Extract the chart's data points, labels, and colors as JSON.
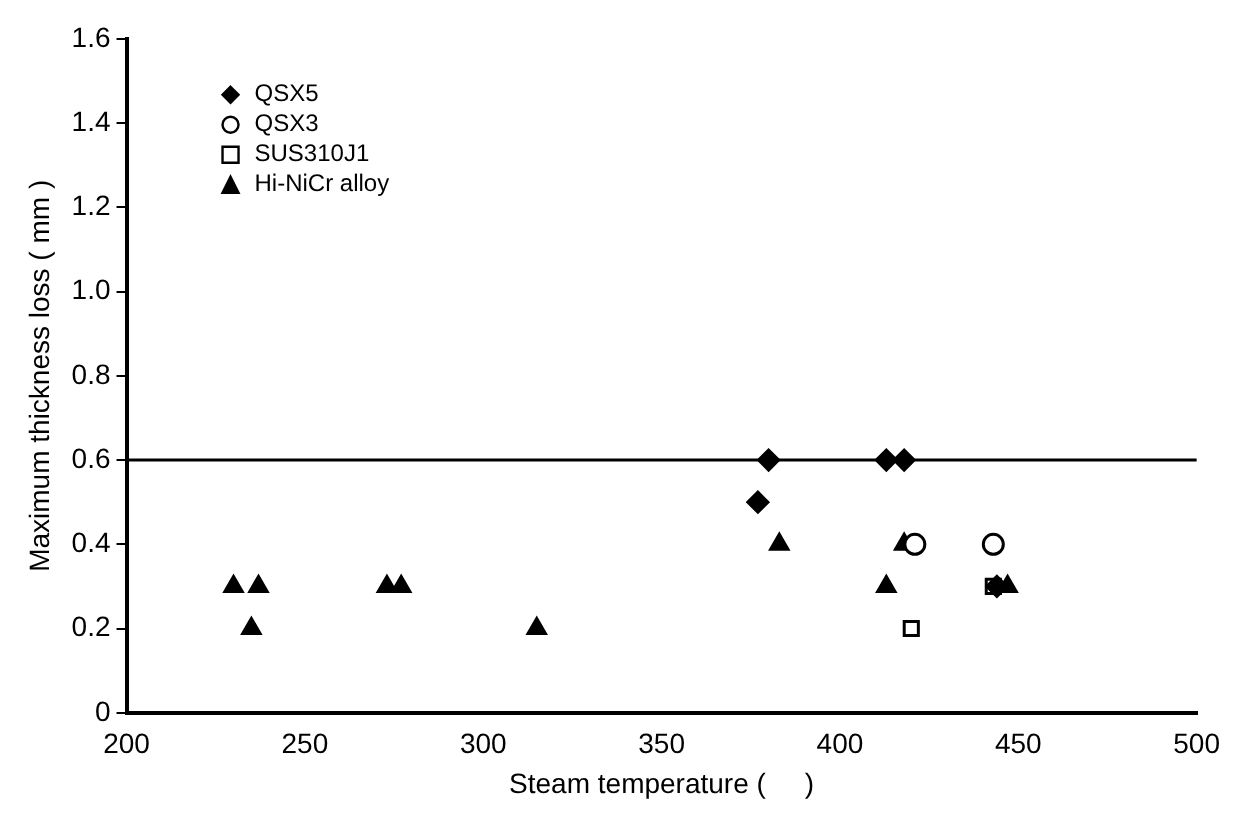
{
  "chart_data": {
    "type": "scatter",
    "xlabel": "Steam temperature (     )",
    "ylabel": "Maximum thickness loss ( mm )",
    "xlim": [
      200,
      500
    ],
    "xticks": [
      200,
      250,
      300,
      350,
      400,
      450,
      500
    ],
    "ylim": [
      0,
      1.6
    ],
    "yticks": [
      0,
      {
        "value": 0.2,
        "label": "0.2"
      },
      {
        "value": 0.4,
        "label": "0.4"
      },
      {
        "value": 0.6,
        "label": "0.6"
      },
      {
        "value": 0.8,
        "label": "0.8"
      },
      {
        "value": 1.0,
        "label": "1.0"
      },
      {
        "value": 1.2,
        "label": "1.2"
      },
      {
        "value": 1.4,
        "label": "1.4"
      },
      {
        "value": 1.6,
        "label": "1.6"
      }
    ],
    "grid": false,
    "legend": "top left",
    "series": [
      {
        "name": "QSX5",
        "color": "#000000",
        "marker": "diamond",
        "x": [
          377,
          380,
          413,
          418,
          444
        ],
        "values": [
          0.5,
          0.6,
          0.6,
          0.6,
          0.3
        ]
      },
      {
        "name": "QSX3",
        "color": "#000000",
        "marker": "circle",
        "x": [
          421,
          443
        ],
        "values": [
          0.4,
          0.4
        ]
      },
      {
        "name": "SUS310J1",
        "color": "#000000",
        "marker": "square",
        "x": [
          420,
          443
        ],
        "values": [
          0.2,
          0.3
        ]
      },
      {
        "name": "Hi-NiCr alloy",
        "color": "#000000",
        "marker": "triangle",
        "x": [
          230,
          237,
          235,
          273,
          277,
          315,
          383,
          413,
          418,
          447
        ],
        "values": [
          0.3,
          0.3,
          0.2,
          0.3,
          0.3,
          0.2,
          0.4,
          0.3,
          0.4,
          0.3
        ]
      }
    ],
    "ref_lines": [
      {
        "axis": "y",
        "value": 0.6,
        "color": "#000000"
      }
    ]
  }
}
